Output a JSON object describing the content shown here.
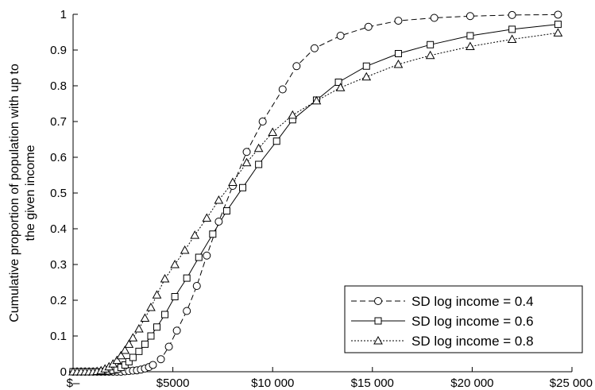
{
  "chart_data": {
    "type": "line",
    "title": "",
    "xlabel": "",
    "ylabel": "Cumulative proportion of population with up to the given income",
    "ylabel_lines": [
      "Cumulative proportion of population with up to",
      "the given income"
    ],
    "xlim": [
      0,
      25000
    ],
    "ylim": [
      0,
      1
    ],
    "x_ticks": [
      0,
      5000,
      10000,
      15000,
      20000,
      25000
    ],
    "x_tick_labels": [
      "$–",
      "$5000",
      "$10 000",
      "$15 000",
      "$20 000",
      "$25 000"
    ],
    "y_ticks": [
      0,
      0.1,
      0.2,
      0.3,
      0.4,
      0.5,
      0.6,
      0.7,
      0.8,
      0.9,
      1
    ],
    "y_tick_labels": [
      "0",
      "0.1",
      "0.2",
      "0.3",
      "0.4",
      "0.5",
      "0.6",
      "0.7",
      "0.8",
      "0.9",
      "1"
    ],
    "grid": false,
    "legend_position": "bottom-right",
    "series": [
      {
        "name": "SD log income = 0.4",
        "marker": "circle",
        "line_style": "dashed",
        "x": [
          0,
          200,
          400,
          600,
          800,
          1000,
          1200,
          1400,
          1600,
          1800,
          2000,
          2200,
          2400,
          2600,
          2800,
          3000,
          3200,
          3400,
          3600,
          3800,
          4000,
          4400,
          4800,
          5200,
          5700,
          6200,
          6700,
          7300,
          8000,
          8700,
          9500,
          10500,
          11200,
          12100,
          13400,
          14800,
          16300,
          18100,
          19900,
          22000,
          24300
        ],
        "y": [
          0,
          0,
          0,
          0,
          0,
          0,
          0,
          0,
          0,
          0,
          0,
          0,
          0,
          0.001,
          0.002,
          0.003,
          0.004,
          0.006,
          0.009,
          0.013,
          0.019,
          0.035,
          0.07,
          0.115,
          0.17,
          0.24,
          0.325,
          0.42,
          0.52,
          0.615,
          0.7,
          0.79,
          0.855,
          0.905,
          0.94,
          0.965,
          0.982,
          0.99,
          0.995,
          0.998,
          0.999
        ]
      },
      {
        "name": "SD log income = 0.6",
        "marker": "square",
        "line_style": "solid",
        "x": [
          0,
          200,
          400,
          600,
          800,
          1000,
          1200,
          1400,
          1600,
          1800,
          2000,
          2200,
          2400,
          2600,
          2800,
          3000,
          3300,
          3600,
          3900,
          4200,
          4600,
          5100,
          5700,
          6300,
          7000,
          7700,
          8500,
          9300,
          10200,
          11000,
          12200,
          13300,
          14700,
          16300,
          17900,
          19900,
          22000,
          24300
        ],
        "y": [
          0,
          0,
          0,
          0,
          0,
          0,
          0,
          0,
          0.001,
          0.002,
          0.004,
          0.007,
          0.012,
          0.019,
          0.028,
          0.04,
          0.057,
          0.077,
          0.1,
          0.125,
          0.16,
          0.21,
          0.262,
          0.32,
          0.385,
          0.45,
          0.515,
          0.58,
          0.645,
          0.705,
          0.76,
          0.81,
          0.855,
          0.89,
          0.915,
          0.94,
          0.958,
          0.972
        ]
      },
      {
        "name": "SD log income = 0.8",
        "marker": "triangle",
        "line_style": "dotted",
        "x": [
          0,
          200,
          400,
          600,
          800,
          1000,
          1200,
          1400,
          1600,
          1800,
          2000,
          2200,
          2400,
          2600,
          2800,
          3000,
          3300,
          3600,
          3900,
          4200,
          4600,
          5100,
          5600,
          6100,
          6700,
          7300,
          8000,
          8700,
          9300,
          10000,
          11000,
          12200,
          13400,
          14700,
          16300,
          17900,
          19900,
          22000,
          24300
        ],
        "y": [
          0,
          0,
          0,
          0,
          0,
          0,
          0.001,
          0.003,
          0.008,
          0.014,
          0.022,
          0.032,
          0.045,
          0.06,
          0.077,
          0.095,
          0.12,
          0.15,
          0.18,
          0.215,
          0.26,
          0.3,
          0.34,
          0.382,
          0.43,
          0.48,
          0.53,
          0.585,
          0.625,
          0.67,
          0.718,
          0.758,
          0.795,
          0.825,
          0.86,
          0.885,
          0.91,
          0.93,
          0.948
        ]
      }
    ]
  }
}
